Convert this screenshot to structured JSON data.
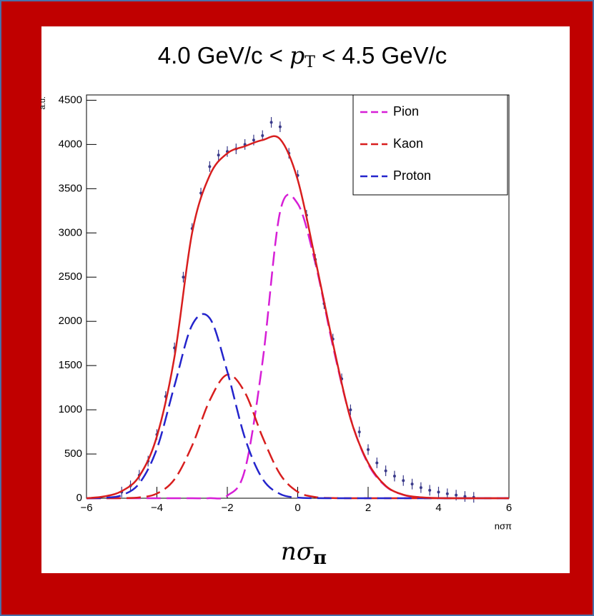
{
  "chart_data": {
    "type": "line",
    "title_left": "4.0 GeV/c <",
    "title_var": "p",
    "title_sub": "T",
    "title_right": "< 4.5 GeV/c",
    "ylabel": "a.u.",
    "xlabel": "nσπ",
    "big_xlabel": "nσ",
    "big_xlabel_sub": "π",
    "x": [
      -6,
      -5.5,
      -5,
      -4.5,
      -4,
      -3.5,
      -3,
      -2.5,
      -2,
      -1.5,
      -1,
      -0.5,
      0,
      0.5,
      1,
      1.5,
      2,
      2.5,
      3,
      3.5,
      4,
      4.5,
      5,
      5.5,
      6
    ],
    "series": [
      {
        "name": "Pion",
        "color": "#d61ed6",
        "values": [
          0,
          0,
          0,
          0,
          0,
          0,
          0,
          1,
          29,
          320,
          1540,
          3240,
          3330,
          2660,
          1720,
          905,
          388,
          135,
          38,
          9,
          2,
          0,
          0,
          0,
          0
        ]
      },
      {
        "name": "Kaon",
        "color": "#d81e1e",
        "values": [
          0,
          0,
          1,
          9,
          53,
          214,
          594,
          1106,
          1397,
          1196,
          692,
          271,
          72,
          13,
          2,
          0,
          0,
          0,
          0,
          0,
          0,
          0,
          0,
          0,
          0
        ]
      },
      {
        "name": "Proton",
        "color": "#2424cc",
        "values": [
          0,
          5,
          34,
          168,
          560,
          1274,
          1958,
          2036,
          1432,
          682,
          219,
          48,
          7,
          1,
          0,
          0,
          0,
          0,
          0,
          0,
          0,
          0,
          0,
          0,
          0
        ]
      }
    ],
    "fit": {
      "color": "#d81e1e",
      "values": [
        0,
        20,
        80,
        250,
        700,
        1600,
        3000,
        3650,
        3900,
        3980,
        4050,
        4060,
        3600,
        2700,
        1750,
        900,
        400,
        140,
        40,
        10,
        2,
        0,
        0,
        0,
        0
      ]
    },
    "points": {
      "color": "#3a3a8a",
      "error": 60,
      "x": [
        -5,
        -4.75,
        -4.5,
        -4.25,
        -4,
        -3.75,
        -3.5,
        -3.25,
        -3,
        -2.75,
        -2.5,
        -2.25,
        -2,
        -1.75,
        -1.5,
        -1.25,
        -1,
        -0.75,
        -0.5,
        -0.25,
        0,
        0.25,
        0.5,
        0.75,
        1,
        1.25,
        1.5,
        1.75,
        2,
        2.25,
        2.5,
        2.75,
        3,
        3.25,
        3.5,
        3.75,
        4,
        4.25,
        4.5,
        4.75,
        5
      ],
      "values": [
        70,
        140,
        260,
        420,
        720,
        1150,
        1700,
        2500,
        3050,
        3450,
        3750,
        3880,
        3920,
        3950,
        4000,
        4050,
        4100,
        4250,
        4200,
        3900,
        3650,
        3200,
        2700,
        2200,
        1800,
        1350,
        1000,
        750,
        550,
        400,
        310,
        250,
        200,
        160,
        120,
        90,
        70,
        50,
        35,
        20,
        10
      ]
    },
    "xlim": [
      -6,
      6
    ],
    "ylim": [
      0,
      4560
    ],
    "xticks": [
      {
        "value": -6,
        "label": "−6"
      },
      {
        "value": -4,
        "label": "−4"
      },
      {
        "value": -2,
        "label": "−2"
      },
      0,
      2,
      4,
      6
    ],
    "yticks": [
      0,
      500,
      1000,
      1500,
      2000,
      2500,
      3000,
      3500,
      4000,
      4500
    ],
    "legend": "top-right"
  }
}
